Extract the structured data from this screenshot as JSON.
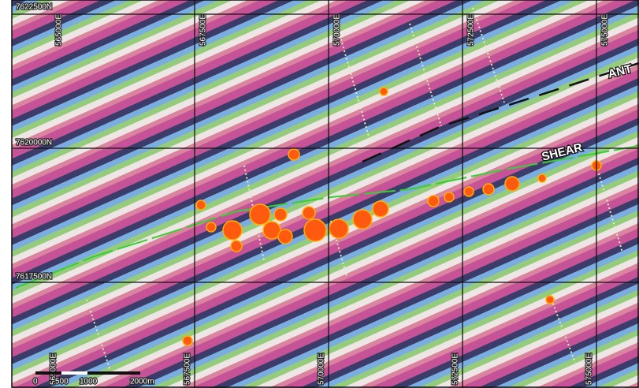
{
  "map": {
    "northings": [
      "7622500N",
      "7620000N",
      "7617500N"
    ],
    "eastings": [
      "565000E",
      "567500E",
      "570000E",
      "572500E",
      "575000E"
    ],
    "features": [
      "SHEAR",
      "ANT"
    ],
    "scale_bar": [
      "0",
      "500",
      "1000",
      "2000m"
    ]
  }
}
